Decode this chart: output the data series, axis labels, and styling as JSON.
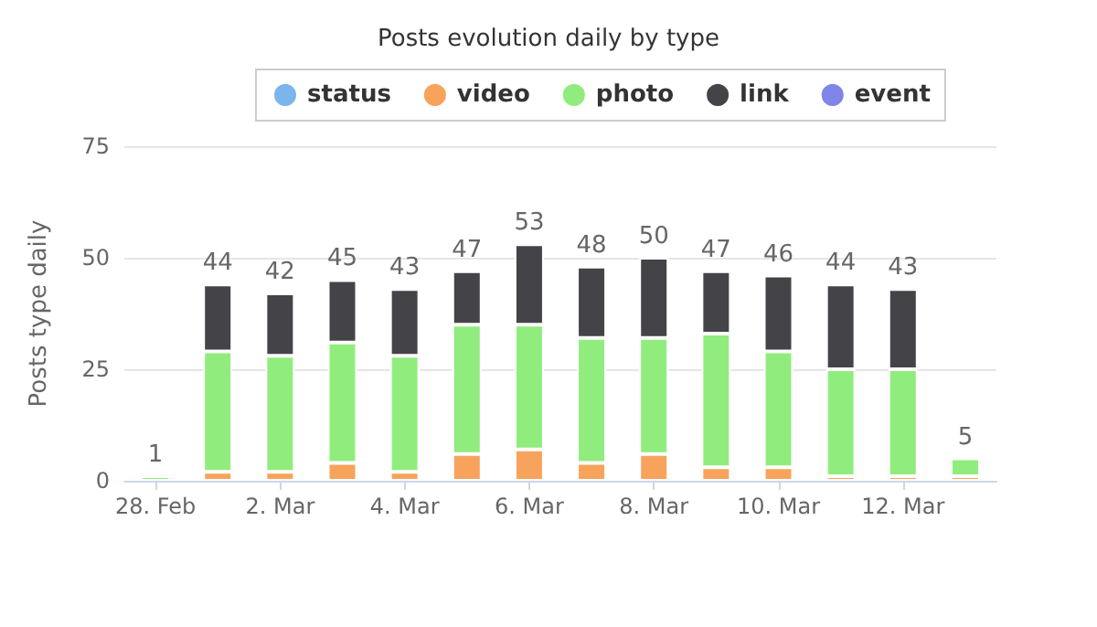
{
  "chart_data": {
    "type": "bar",
    "title": "Posts evolution daily by type",
    "ylabel": "Posts type daily",
    "categories": [
      "28. Feb",
      null,
      "2. Mar",
      null,
      "4. Mar",
      null,
      "6. Mar",
      null,
      "8. Mar",
      null,
      "10. Mar",
      null,
      "12. Mar",
      null
    ],
    "stacked": true,
    "series": [
      {
        "name": "status",
        "color": "#7cb5ec",
        "values": [
          null,
          null,
          null,
          null,
          null,
          null,
          null,
          null,
          null,
          null,
          null,
          null,
          null,
          null
        ]
      },
      {
        "name": "video",
        "color": "#f7a35c",
        "values": [
          0,
          2,
          2,
          4,
          2,
          6,
          7,
          4,
          6,
          3,
          3,
          1,
          1,
          1
        ]
      },
      {
        "name": "photo",
        "color": "#90ed7d",
        "values": [
          1,
          27,
          26,
          27,
          26,
          29,
          28,
          28,
          26,
          30,
          26,
          24,
          24,
          4
        ]
      },
      {
        "name": "link",
        "color": "#434348",
        "values": [
          0,
          15,
          14,
          14,
          15,
          12,
          18,
          16,
          18,
          14,
          17,
          19,
          18,
          0
        ]
      },
      {
        "name": "event",
        "color": "#8085e9",
        "values": [
          null,
          null,
          null,
          null,
          null,
          null,
          null,
          null,
          null,
          null,
          null,
          null,
          null,
          null
        ]
      }
    ],
    "totals": [
      "1",
      "44",
      "42",
      "45",
      "43",
      "47",
      "53",
      "48",
      "50",
      "47",
      "46",
      "44",
      "43",
      "5"
    ],
    "ylim": [
      0,
      75
    ],
    "yticks": [
      0,
      25,
      50,
      75
    ],
    "grid": "y",
    "legend": "top"
  }
}
